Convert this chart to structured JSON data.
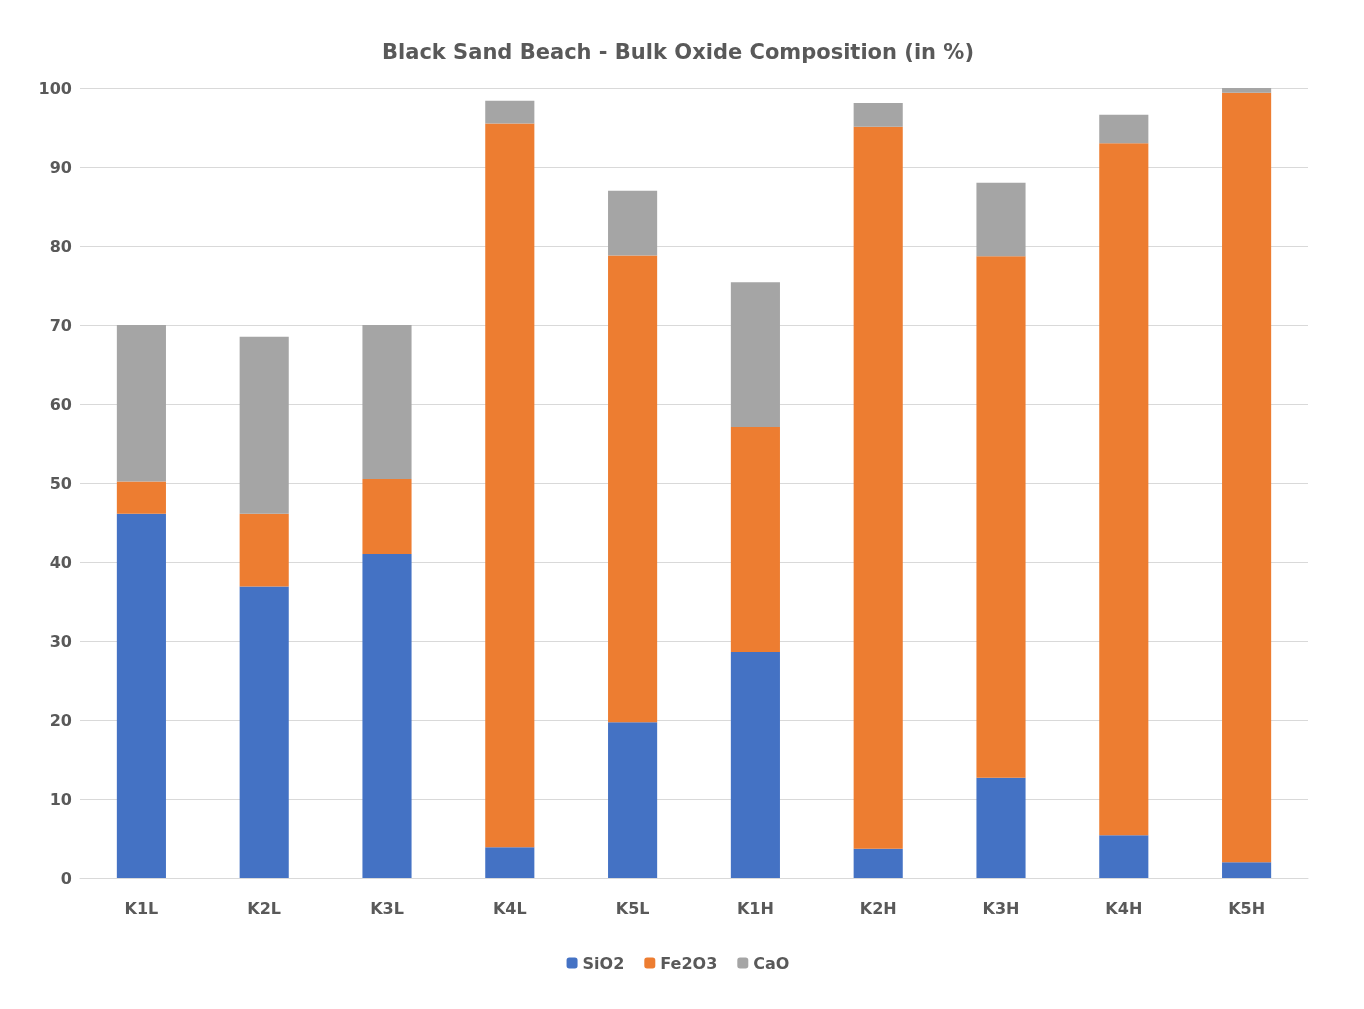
{
  "chart_data": {
    "type": "bar",
    "title": "Black Sand Beach - Bulk Oxide Composition (in %)",
    "stacked": true,
    "categories": [
      "K1L",
      "K2L",
      "K3L",
      "K4L",
      "K5L",
      "K1H",
      "K2H",
      "K3H",
      "K4H",
      "K5H"
    ],
    "series": [
      {
        "name": "SiO2",
        "color": "#4472c4",
        "values": [
          46.1,
          36.9,
          41.0,
          3.9,
          19.7,
          28.6,
          3.7,
          12.7,
          5.4,
          2.0
        ]
      },
      {
        "name": "Fe2O3",
        "color": "#ed7d31",
        "values": [
          4.1,
          9.2,
          9.5,
          91.6,
          59.1,
          28.5,
          91.4,
          66.0,
          87.6,
          97.4
        ]
      },
      {
        "name": "CaO",
        "color": "#a5a5a5",
        "values": [
          19.8,
          22.4,
          19.5,
          2.9,
          8.2,
          18.3,
          3.0,
          9.3,
          3.6,
          0.6
        ]
      }
    ],
    "ylim": [
      0,
      100
    ],
    "yticks": [
      0,
      10,
      20,
      30,
      40,
      50,
      60,
      70,
      80,
      90,
      100
    ],
    "grid": "y",
    "legend": "bottom"
  }
}
